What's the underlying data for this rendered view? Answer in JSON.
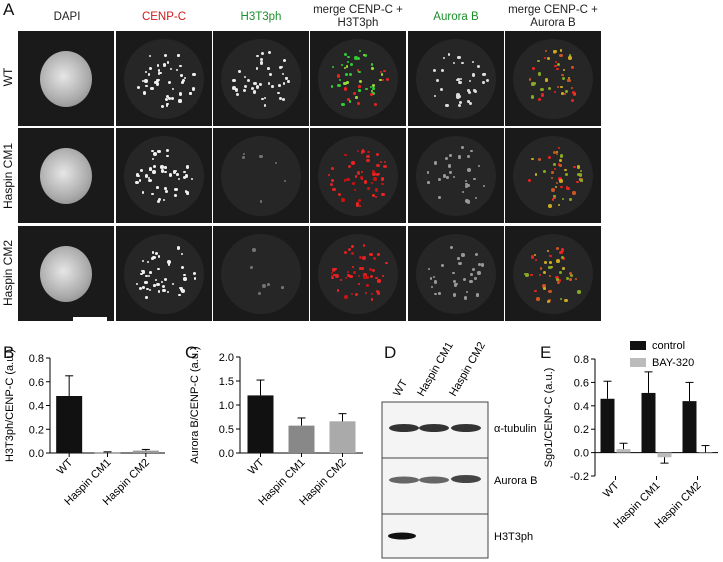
{
  "figure": {
    "panel_letters": [
      "A",
      "B",
      "C",
      "D",
      "E"
    ],
    "columns": [
      "DAPI",
      "CENP-C",
      "H3T3ph",
      "merge CENP-C +\nH3T3ph",
      "Aurora B",
      "merge CENP-C +\nAurora B"
    ],
    "column_colors": [
      "#222222",
      "#d01a1a",
      "#1a8f2a",
      "#222222",
      "#1a8f2a",
      "#222222"
    ],
    "rows": [
      "WT",
      "Haspin CM1",
      "Haspin CM2"
    ]
  },
  "chart_data": [
    {
      "type": "bar",
      "panel": "B",
      "categories": [
        "WT",
        "Haspin CM1",
        "Haspin CM2"
      ],
      "values": [
        0.48,
        0.005,
        0.02
      ],
      "errors": [
        0.17,
        0.005,
        0.01
      ],
      "ylabel": "H3T3ph/CENP-C (a.u.)",
      "ylim": [
        0,
        0.8
      ],
      "yticks": [
        "0.0",
        "0.2",
        "0.4",
        "0.6",
        "0.8"
      ],
      "colors": [
        "#111111",
        "#777777",
        "#999999"
      ]
    },
    {
      "type": "bar",
      "panel": "C",
      "categories": [
        "WT",
        "Haspin CM1",
        "Haspin CM2"
      ],
      "values": [
        1.2,
        0.57,
        0.66
      ],
      "errors": [
        0.32,
        0.16,
        0.16
      ],
      "ylabel": "Aurora B/CENP-C (a.u.)",
      "ylim": [
        0,
        2.0
      ],
      "yticks": [
        "0.0",
        "0.5",
        "1.0",
        "1.5",
        "2.0"
      ],
      "colors": [
        "#111111",
        "#888888",
        "#aaaaaa"
      ]
    },
    {
      "type": "bar",
      "panel": "E",
      "categories": [
        "WT",
        "Haspin CM1",
        "Haspin CM2"
      ],
      "series": [
        {
          "name": "control",
          "values": [
            0.46,
            0.51,
            0.44
          ],
          "errors": [
            0.15,
            0.18,
            0.16
          ],
          "color": "#111111"
        },
        {
          "name": "BAY-320",
          "values": [
            0.03,
            -0.04,
            0.0
          ],
          "errors": [
            0.05,
            0.05,
            0.06
          ],
          "color": "#bbbbbb"
        }
      ],
      "ylabel": "Sgo1/CENP-C (a.u.)",
      "ylim": [
        -0.2,
        0.8
      ],
      "yticks": [
        "-0.2",
        "0.0",
        "0.2",
        "0.4",
        "0.6",
        "0.8"
      ]
    }
  ],
  "blot": {
    "lanes": [
      "WT",
      "Haspin CM1",
      "Haspin CM2"
    ],
    "bands": [
      "α-tubulin",
      "Aurora B",
      "H3T3ph"
    ]
  }
}
